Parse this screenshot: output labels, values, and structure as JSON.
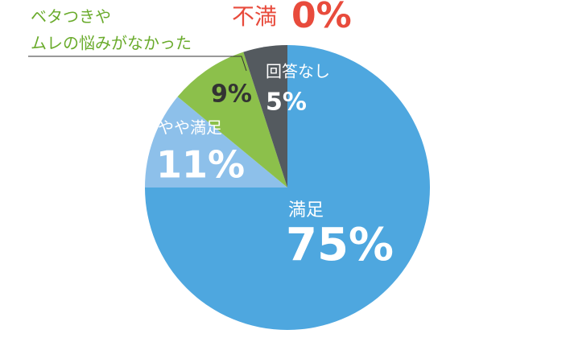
{
  "chart_data": {
    "type": "pie",
    "categories": [
      [
        "満足"
      ],
      [
        "やや満足"
      ],
      [
        "ベタつきや",
        "ムレの悩みがなかった"
      ],
      [
        "回答なし"
      ],
      [
        "不満"
      ]
    ],
    "values": [
      75,
      11,
      9,
      5,
      0
    ],
    "value_labels": [
      "75%",
      "11%",
      "9%",
      "5%",
      "0%"
    ],
    "colors": [
      "#4ea7df",
      "#8dc0ea",
      "#8cc04b",
      "#545a5f",
      "#e84b3c"
    ]
  }
}
